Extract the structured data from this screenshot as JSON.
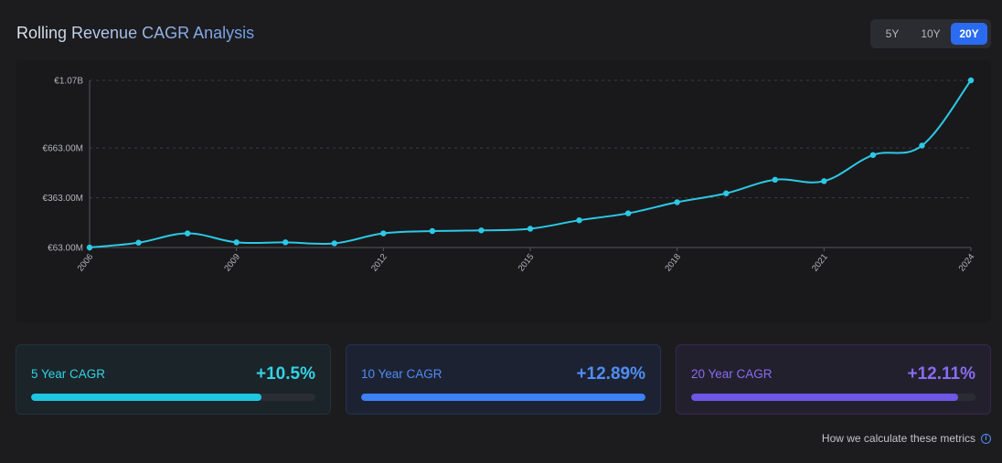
{
  "header": {
    "title": "Rolling Revenue CAGR Analysis"
  },
  "range_switch": {
    "options": [
      "5Y",
      "10Y",
      "20Y"
    ],
    "selected": "20Y"
  },
  "chart_data": {
    "type": "line",
    "x": [
      2006,
      2007,
      2008,
      2009,
      2010,
      2011,
      2012,
      2013,
      2014,
      2015,
      2016,
      2017,
      2018,
      2019,
      2020,
      2021,
      2022,
      2023,
      2024
    ],
    "series": [
      {
        "values": [
          63,
          92,
          148,
          94,
          94,
          88,
          148,
          162,
          166,
          176,
          227,
          269,
          336,
          389,
          471,
          463,
          620,
          677,
          1070
        ]
      }
    ],
    "x_tick_labels": [
      "2006",
      "2009",
      "2012",
      "2015",
      "2018",
      "2021",
      "2024"
    ],
    "y_tick_labels": [
      "€1.07B",
      "€663.00M",
      "€363.00M",
      "€63.00M"
    ],
    "y_unit": "€ millions",
    "grid": "horizontal dashed",
    "line_color": "#2cc9e6"
  },
  "cards": [
    {
      "label": "5 Year CAGR",
      "value": "+10.5%",
      "fill_percent": 81
    },
    {
      "label": "10 Year CAGR",
      "value": "+12.89%",
      "fill_percent": 100
    },
    {
      "label": "20 Year CAGR",
      "value": "+12.11%",
      "fill_percent": 94
    }
  ],
  "footer": {
    "link_text": "How we calculate these metrics",
    "icon": "info-icon"
  }
}
